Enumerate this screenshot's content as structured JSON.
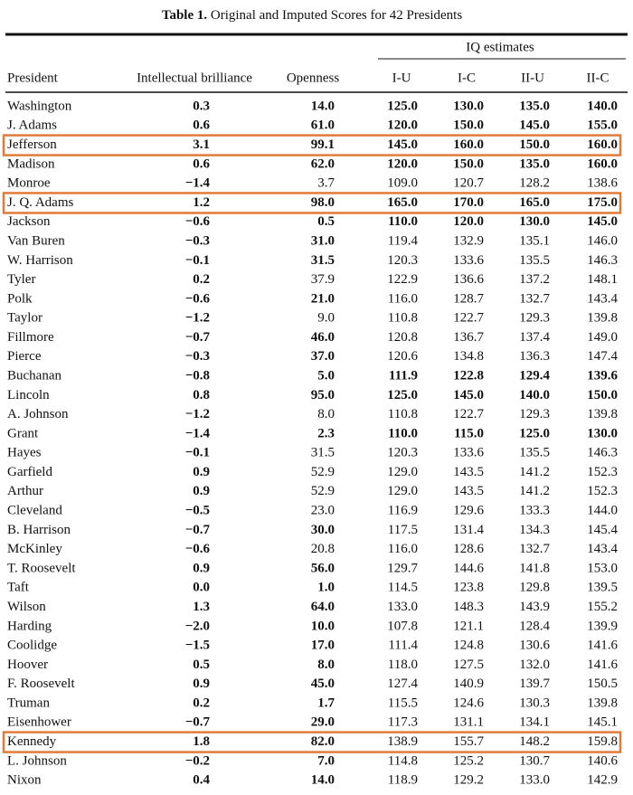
{
  "header": {
    "label": "Table 1.",
    "title": "Original and Imputed Scores for 42 Presidents"
  },
  "table": {
    "group_header": "IQ estimates",
    "columns": [
      "President",
      "Intellectual brilliance",
      "Openness",
      "I-U",
      "I-C",
      "II-U",
      "II-C"
    ],
    "rows": [
      [
        "Washington",
        "0.3",
        "14.0",
        "125.0",
        "130.0",
        "135.0",
        "140.0"
      ],
      [
        "J. Adams",
        "0.6",
        "61.0",
        "120.0",
        "150.0",
        "145.0",
        "155.0"
      ],
      [
        "Jefferson",
        "3.1",
        "99.1",
        "145.0",
        "160.0",
        "150.0",
        "160.0"
      ],
      [
        "Madison",
        "0.6",
        "62.0",
        "120.0",
        "150.0",
        "135.0",
        "160.0"
      ],
      [
        "Monroe",
        "−1.4",
        "3.7",
        "109.0",
        "120.7",
        "128.2",
        "138.6"
      ],
      [
        "J. Q. Adams",
        "1.2",
        "98.0",
        "165.0",
        "170.0",
        "165.0",
        "175.0"
      ],
      [
        "Jackson",
        "−0.6",
        "0.5",
        "110.0",
        "120.0",
        "130.0",
        "145.0"
      ],
      [
        "Van Buren",
        "−0.3",
        "31.0",
        "119.4",
        "132.9",
        "135.1",
        "146.0"
      ],
      [
        "W. Harrison",
        "−0.1",
        "31.5",
        "120.3",
        "133.6",
        "135.5",
        "146.3"
      ],
      [
        "Tyler",
        "0.2",
        "37.9",
        "122.9",
        "136.6",
        "137.2",
        "148.1"
      ],
      [
        "Polk",
        "−0.6",
        "21.0",
        "116.0",
        "128.7",
        "132.7",
        "143.4"
      ],
      [
        "Taylor",
        "−1.2",
        "9.0",
        "110.8",
        "122.7",
        "129.3",
        "139.8"
      ],
      [
        "Fillmore",
        "−0.7",
        "46.0",
        "120.8",
        "136.7",
        "137.4",
        "149.0"
      ],
      [
        "Pierce",
        "−0.3",
        "37.0",
        "120.6",
        "134.8",
        "136.3",
        "147.4"
      ],
      [
        "Buchanan",
        "−0.8",
        "5.0",
        "111.9",
        "122.8",
        "129.4",
        "139.6"
      ],
      [
        "Lincoln",
        "0.8",
        "95.0",
        "125.0",
        "145.0",
        "140.0",
        "150.0"
      ],
      [
        "A. Johnson",
        "−1.2",
        "8.0",
        "110.8",
        "122.7",
        "129.3",
        "139.8"
      ],
      [
        "Grant",
        "−1.4",
        "2.3",
        "110.0",
        "115.0",
        "125.0",
        "130.0"
      ],
      [
        "Hayes",
        "−0.1",
        "31.5",
        "120.3",
        "133.6",
        "135.5",
        "146.3"
      ],
      [
        "Garfield",
        "0.9",
        "52.9",
        "129.0",
        "143.5",
        "141.2",
        "152.3"
      ],
      [
        "Arthur",
        "0.9",
        "52.9",
        "129.0",
        "143.5",
        "141.2",
        "152.3"
      ],
      [
        "Cleveland",
        "−0.5",
        "23.0",
        "116.9",
        "129.6",
        "133.3",
        "144.0"
      ],
      [
        "B. Harrison",
        "−0.7",
        "30.0",
        "117.5",
        "131.4",
        "134.3",
        "145.4"
      ],
      [
        "McKinley",
        "−0.6",
        "20.8",
        "116.0",
        "128.6",
        "132.7",
        "143.4"
      ],
      [
        "T. Roosevelt",
        "0.9",
        "56.0",
        "129.7",
        "144.6",
        "141.8",
        "153.0"
      ],
      [
        "Taft",
        "0.0",
        "1.0",
        "114.5",
        "123.8",
        "129.8",
        "139.5"
      ],
      [
        "Wilson",
        "1.3",
        "64.0",
        "133.0",
        "148.3",
        "143.9",
        "155.2"
      ],
      [
        "Harding",
        "−2.0",
        "10.0",
        "107.8",
        "121.1",
        "128.4",
        "139.9"
      ],
      [
        "Coolidge",
        "−1.5",
        "17.0",
        "111.4",
        "124.8",
        "130.6",
        "141.6"
      ],
      [
        "Hoover",
        "0.5",
        "8.0",
        "118.0",
        "127.5",
        "132.0",
        "141.6"
      ],
      [
        "F. Roosevelt",
        "0.9",
        "45.0",
        "127.4",
        "140.9",
        "139.7",
        "150.5"
      ],
      [
        "Truman",
        "0.2",
        "1.7",
        "115.5",
        "124.6",
        "130.3",
        "139.8"
      ],
      [
        "Eisenhower",
        "−0.7",
        "29.0",
        "117.3",
        "131.1",
        "134.1",
        "145.1"
      ],
      [
        "Kennedy",
        "1.8",
        "82.0",
        "138.9",
        "155.7",
        "148.2",
        "159.8"
      ],
      [
        "L. Johnson",
        "−0.2",
        "7.0",
        "114.8",
        "125.2",
        "130.7",
        "140.6"
      ],
      [
        "Nixon",
        "0.4",
        "14.0",
        "118.9",
        "129.2",
        "133.0",
        "142.9"
      ]
    ]
  }
}
